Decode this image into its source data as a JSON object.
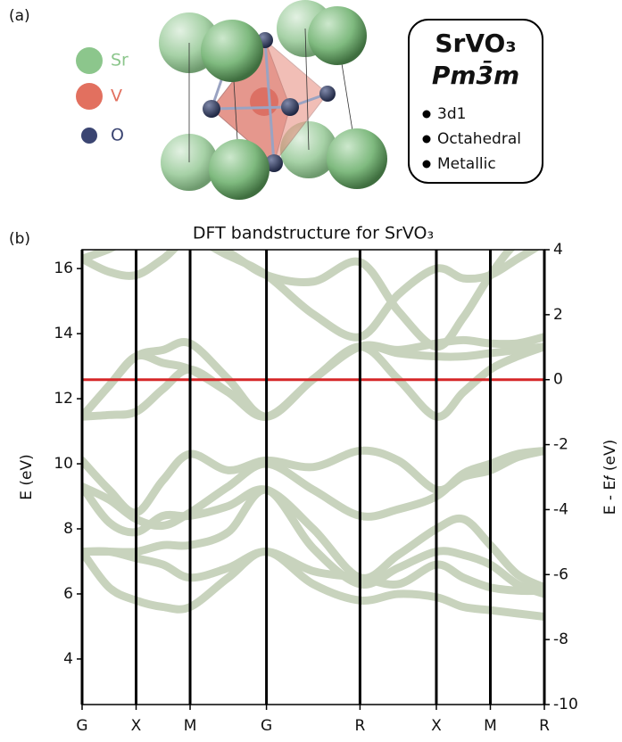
{
  "panel_labels": [
    "(a)",
    "(b)"
  ],
  "structure": {
    "legend": [
      {
        "label": "Sr",
        "color": "#8cc68c"
      },
      {
        "label": "V",
        "color": "#e2705f"
      },
      {
        "label": "O",
        "color": "#3b4572"
      }
    ],
    "formula": "SrVO₃",
    "space_group": "Pm3̄m",
    "properties": [
      "3d1",
      "Octahedral",
      "Metallic"
    ]
  },
  "chart_data": {
    "type": "line",
    "title": "DFT bandstructure for SrVO₃",
    "ylabel": "E (eV)",
    "y2label": "E - E𝑓 (eV)",
    "x": [
      0,
      0.5,
      1,
      1.5,
      2,
      2.707,
      3.414,
      4.28,
      5.146,
      5.853,
      6.56,
      7.06,
      7.56,
      8.06,
      8.56
    ],
    "xlim": [
      0,
      8.56
    ],
    "xticks": [
      {
        "value": 0,
        "label": "G"
      },
      {
        "value": 1,
        "label": "X"
      },
      {
        "value": 2,
        "label": "M"
      },
      {
        "value": 3.414,
        "label": "G"
      },
      {
        "value": 5.146,
        "label": "R"
      },
      {
        "value": 6.56,
        "label": "X"
      },
      {
        "value": 7.56,
        "label": "M"
      },
      {
        "value": 8.56,
        "label": "R"
      }
    ],
    "ylim": [
      2.6,
      16.58
    ],
    "yticks": [
      4,
      6,
      8,
      10,
      12,
      14,
      16
    ],
    "y2lim": [
      -10,
      4
    ],
    "y2ticks": [
      -10,
      -8,
      -6,
      -4,
      -2,
      0,
      2,
      4
    ],
    "vgrid": true,
    "hlines": [
      {
        "axis": "y2",
        "value": 0,
        "color": "#d62728"
      }
    ],
    "series": [
      {
        "color": "#c8d3bd",
        "values": [
          11.45,
          11.5,
          11.6,
          12.3,
          12.9,
          12.2,
          11.45,
          12.6,
          13.6,
          12.6,
          11.45,
          12.2,
          12.9,
          13.3,
          13.6
        ]
      },
      {
        "color": "#c8d3bd",
        "values": [
          11.45,
          12.4,
          13.3,
          13.1,
          12.9,
          12.2,
          11.45,
          12.6,
          13.6,
          13.4,
          13.3,
          13.3,
          13.4,
          13.5,
          13.6
        ]
      },
      {
        "color": "#c8d3bd",
        "values": [
          11.45,
          12.4,
          13.3,
          13.5,
          13.7,
          12.6,
          11.45,
          12.6,
          13.6,
          13.5,
          13.7,
          13.8,
          13.7,
          13.7,
          13.9
        ]
      },
      {
        "color": "#c8d3bd",
        "values": [
          16.3,
          15.9,
          15.8,
          16.3,
          16.9,
          16.4,
          15.8,
          14.6,
          13.9,
          15.2,
          16.0,
          15.7,
          15.8,
          16.3,
          16.8
        ]
      },
      {
        "color": "#c8d3bd",
        "values": [
          16.3,
          16.6,
          17.0,
          17.0,
          17.0,
          16.5,
          15.8,
          15.6,
          16.2,
          14.7,
          13.6,
          14.5,
          15.8,
          16.8,
          17.0
        ]
      },
      {
        "color": "#c8d3bd",
        "values": [
          10.1,
          9.2,
          8.5,
          9.5,
          10.3,
          9.8,
          10.1,
          9.9,
          10.4,
          10.1,
          9.2,
          9.6,
          9.8,
          10.2,
          10.4
        ]
      },
      {
        "color": "#c8d3bd",
        "values": [
          9.3,
          8.9,
          8.3,
          8.1,
          8.5,
          9.3,
          10.0,
          9.2,
          8.4,
          8.6,
          9.0,
          9.7,
          10.0,
          10.3,
          10.4
        ]
      },
      {
        "color": "#c8d3bd",
        "values": [
          9.3,
          8.2,
          7.9,
          8.4,
          8.4,
          8.7,
          9.2,
          8.0,
          6.5,
          7.2,
          8.0,
          8.3,
          7.5,
          6.6,
          6.2
        ]
      },
      {
        "color": "#c8d3bd",
        "values": [
          7.3,
          7.3,
          7.3,
          7.5,
          7.5,
          7.9,
          9.2,
          7.4,
          6.3,
          6.8,
          7.3,
          7.2,
          6.9,
          6.3,
          6.0
        ]
      },
      {
        "color": "#c8d3bd",
        "values": [
          7.3,
          7.3,
          7.1,
          6.9,
          6.5,
          6.8,
          7.3,
          6.7,
          6.5,
          6.3,
          6.9,
          6.5,
          6.2,
          6.1,
          6.1
        ]
      },
      {
        "color": "#c8d3bd",
        "values": [
          7.3,
          6.2,
          5.8,
          5.6,
          5.6,
          6.5,
          7.3,
          6.3,
          5.8,
          6.0,
          5.9,
          5.6,
          5.5,
          5.4,
          5.3
        ]
      }
    ]
  }
}
